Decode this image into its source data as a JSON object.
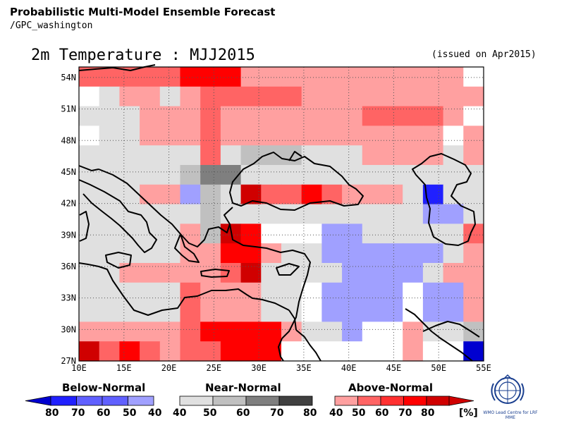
{
  "header": {
    "title": "Probabilistic Multi-Model Ensemble Forecast",
    "subtitle": "/GPC_washington"
  },
  "map": {
    "title": "2m Temperature : MJJ2015",
    "issued": "(issued on Apr2015)",
    "lon_range": [
      10,
      55
    ],
    "lat_range": [
      27,
      55
    ],
    "x_ticks": [
      "10E",
      "15E",
      "20E",
      "25E",
      "30E",
      "35E",
      "40E",
      "45E",
      "50E",
      "55E"
    ],
    "y_ticks": [
      "54N",
      "51N",
      "48N",
      "45N",
      "42N",
      "39N",
      "36N",
      "33N",
      "30N",
      "27N"
    ],
    "grid": "dotted"
  },
  "colors": {
    "0": "#ffffff",
    "g1": "#e0e0e0",
    "g2": "#c0c0c0",
    "g3": "#7f7f7f",
    "g4": "#404040",
    "a1": "#ffa0a0",
    "a2": "#ff6464",
    "a3": "#ff3030",
    "a4": "#ff0000",
    "a5": "#d00000",
    "b1": "#a0a0ff",
    "b2": "#6060ff",
    "b3": "#2020ff",
    "b4": "#0000d0"
  },
  "grid_cells": [
    [
      "a2",
      "a2",
      "a2",
      "a2",
      "a2",
      "a4",
      "a4",
      "a4",
      "a1",
      "a1",
      "a1",
      "a1",
      "a1",
      "a1",
      "a1",
      "a1",
      "a1",
      "a1",
      "a1",
      "0"
    ],
    [
      "0",
      "g1",
      "a1",
      "a1",
      "g1",
      "a1",
      "a2",
      "a2",
      "a2",
      "a2",
      "a2",
      "a1",
      "a1",
      "a1",
      "a1",
      "a1",
      "a1",
      "a1",
      "a1",
      "a1"
    ],
    [
      "g1",
      "g1",
      "g1",
      "a1",
      "a1",
      "a1",
      "a2",
      "a1",
      "a1",
      "a1",
      "a1",
      "a1",
      "a1",
      "a1",
      "a2",
      "a2",
      "a2",
      "a2",
      "a1",
      "0"
    ],
    [
      "0",
      "g1",
      "g1",
      "a1",
      "a1",
      "a1",
      "a2",
      "a1",
      "a1",
      "a1",
      "a1",
      "a1",
      "a1",
      "a1",
      "a1",
      "a1",
      "a1",
      "a1",
      "0",
      "a1"
    ],
    [
      "g1",
      "g1",
      "g1",
      "g1",
      "g1",
      "g1",
      "a2",
      "g1",
      "g2",
      "g2",
      "g2",
      "g1",
      "g1",
      "g1",
      "a1",
      "a1",
      "a1",
      "a1",
      "g1",
      "a1"
    ],
    [
      "g1",
      "g1",
      "g1",
      "g1",
      "g1",
      "g2",
      "g3",
      "g3",
      "g1",
      "g1",
      "g1",
      "g1",
      "g1",
      "g1",
      "g1",
      "g1",
      "g1",
      "g1",
      "g1",
      "g1"
    ],
    [
      "g1",
      "g1",
      "g1",
      "a1",
      "a1",
      "b1",
      "g2",
      "g1",
      "a5",
      "a2",
      "a2",
      "a4",
      "a2",
      "a1",
      "a1",
      "a1",
      "g1",
      "b3",
      "g1",
      "g1"
    ],
    [
      "g1",
      "g1",
      "g1",
      "g1",
      "g1",
      "g1",
      "g2",
      "g1",
      "g1",
      "g1",
      "g1",
      "g1",
      "g1",
      "g1",
      "g1",
      "g1",
      "g1",
      "b1",
      "b1",
      "g1"
    ],
    [
      "g1",
      "g1",
      "g1",
      "g1",
      "g1",
      "a1",
      "g2",
      "a5",
      "a4",
      "0",
      "0",
      "0",
      "b1",
      "b1",
      "g1",
      "g1",
      "g1",
      "g1",
      "g1",
      "a2"
    ],
    [
      "g1",
      "g1",
      "g1",
      "g1",
      "g1",
      "a1",
      "a1",
      "a4",
      "a4",
      "a1",
      "g1",
      "g1",
      "b1",
      "b1",
      "b1",
      "b1",
      "b1",
      "b1",
      "g1",
      "a1"
    ],
    [
      "g1",
      "g1",
      "a1",
      "a1",
      "a1",
      "a1",
      "a1",
      "a2",
      "a5",
      "g1",
      "g1",
      "g1",
      "g1",
      "b1",
      "b1",
      "b1",
      "b1",
      "g1",
      "a1",
      "a1"
    ],
    [
      "g1",
      "g1",
      "g1",
      "g1",
      "g1",
      "a2",
      "a1",
      "a1",
      "a1",
      "g1",
      "g1",
      "0",
      "b1",
      "b1",
      "b1",
      "b1",
      "0",
      "b1",
      "b1",
      "a1"
    ],
    [
      "g1",
      "g1",
      "g1",
      "g1",
      "g1",
      "a2",
      "a1",
      "a1",
      "a1",
      "g1",
      "g1",
      "0",
      "b1",
      "b1",
      "b1",
      "b1",
      "0",
      "b1",
      "b1",
      "a1"
    ],
    [
      "a1",
      "a1",
      "a1",
      "a1",
      "a1",
      "a2",
      "a4",
      "a4",
      "a4",
      "a4",
      "a1",
      "g1",
      "g1",
      "b1",
      "0",
      "0",
      "a1",
      "g1",
      "g1",
      "g2"
    ],
    [
      "a5",
      "a2",
      "a4",
      "a2",
      "a1",
      "a2",
      "a2",
      "a4",
      "a4",
      "a4",
      "0",
      "0",
      "0",
      "0",
      "0",
      "0",
      "a1",
      "0",
      "0",
      "b4"
    ]
  ],
  "colorbars": {
    "below": {
      "title": "Below-Normal",
      "labels": [
        "80",
        "70",
        "60",
        "50",
        "40"
      ]
    },
    "near": {
      "title": "Near-Normal",
      "labels": [
        "40",
        "50",
        "60",
        "70",
        "80"
      ]
    },
    "above": {
      "title": "Above-Normal",
      "labels": [
        "40",
        "50",
        "60",
        "70",
        "80",
        "[%]"
      ]
    }
  },
  "logo": {
    "text": "WMO Lead Centre for LRF MME"
  }
}
